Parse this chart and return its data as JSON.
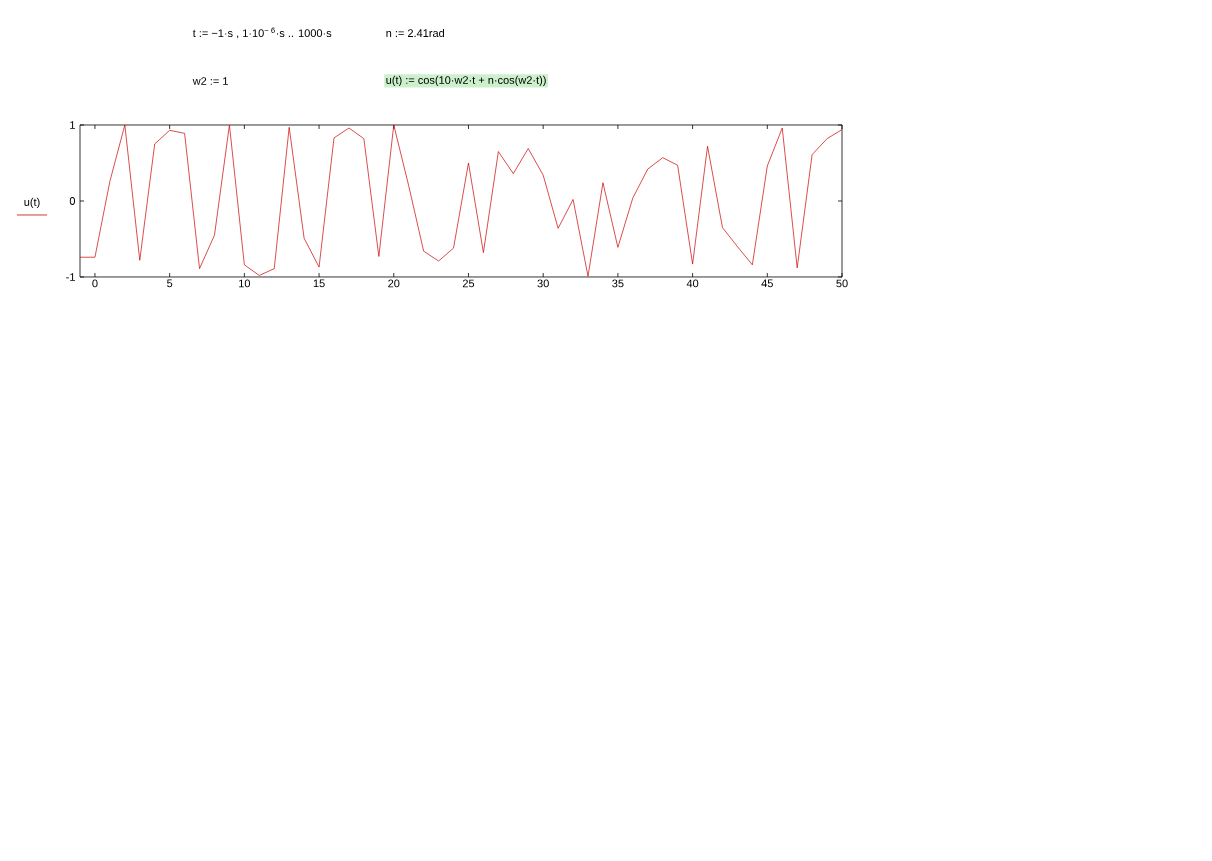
{
  "chart_data": {
    "type": "line",
    "annotations": [
      "t := −1·s , 1·10$^{− 6}$·s .. 1000·s",
      "n := 2.41rad",
      "w2 := 1",
      "u(t) := cos(10·w2·t + n·cos(w2·t))"
    ],
    "x": [
      -1,
      0,
      1,
      2,
      3,
      4,
      5,
      6,
      7,
      8,
      9,
      10,
      11,
      12,
      13,
      14,
      15,
      16,
      17,
      18,
      19,
      20,
      21,
      22,
      23,
      24,
      25,
      26,
      27,
      28,
      29,
      30,
      31,
      32,
      33,
      34,
      35,
      36,
      37,
      38,
      39,
      40,
      41,
      42,
      43,
      44,
      45,
      46,
      47,
      48,
      49,
      50
    ],
    "series": [
      {
        "name": "u(t)",
        "color": "#cc0000",
        "values": [
          -0.74,
          -0.74,
          0.26,
          1.0,
          -0.78,
          0.75,
          0.93,
          0.89,
          -0.89,
          -0.45,
          1.0,
          -0.84,
          -0.98,
          -0.89,
          0.97,
          -0.49,
          -0.87,
          0.83,
          0.96,
          0.82,
          -0.73,
          1.0,
          0.2,
          -0.66,
          -0.79,
          -0.62,
          0.5,
          -0.68,
          0.65,
          0.36,
          0.69,
          0.34,
          -0.36,
          0.02,
          -0.99,
          0.24,
          -0.61,
          0.04,
          0.42,
          0.57,
          0.47,
          -0.83,
          0.72,
          -0.35,
          -0.6,
          -0.84,
          0.46,
          0.96,
          -0.88,
          0.61,
          0.82,
          0.94
        ]
      }
    ],
    "xlim": [
      -1,
      50
    ],
    "ylim": [
      -1,
      1
    ],
    "xticks": [
      0,
      5,
      10,
      15,
      20,
      25,
      30,
      35,
      40,
      45,
      50
    ],
    "yticks": [
      -1,
      0,
      1
    ],
    "grid": false,
    "legend": "left",
    "marker": "none",
    "line_style": "solid"
  }
}
